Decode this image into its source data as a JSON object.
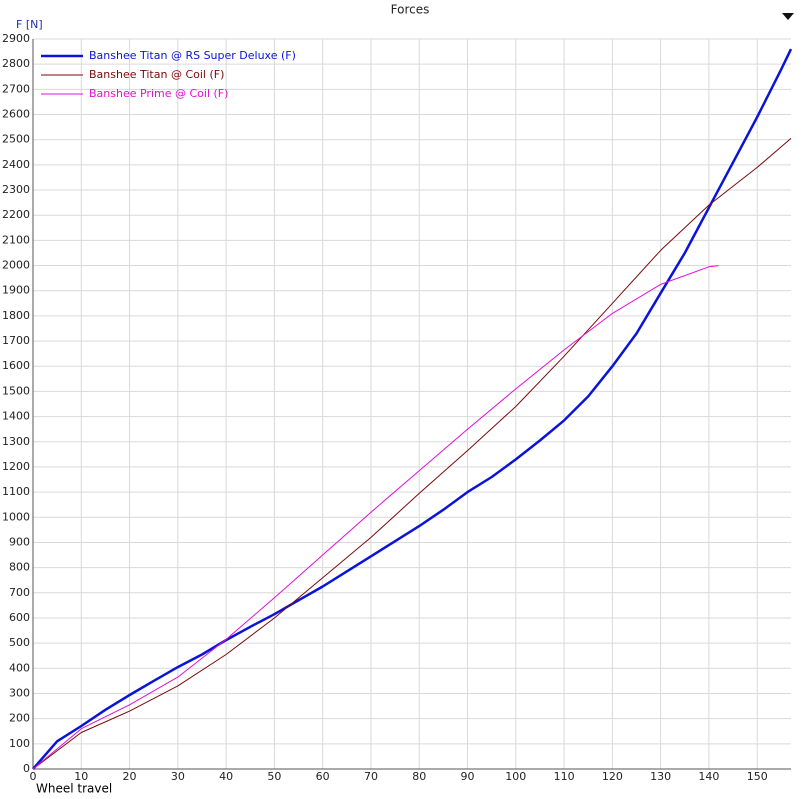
{
  "chart_data": {
    "type": "line",
    "title": "Forces",
    "y_label": "F [N]",
    "x_label": "Wheel travel",
    "xlim": [
      0,
      157
    ],
    "ylim": [
      0,
      2900
    ],
    "xticks": [
      0,
      10,
      20,
      30,
      40,
      50,
      60,
      70,
      80,
      90,
      100,
      110,
      120,
      130,
      140,
      150
    ],
    "yticks": [
      0,
      100,
      200,
      300,
      400,
      500,
      600,
      700,
      800,
      900,
      1000,
      1100,
      1200,
      1300,
      1400,
      1500,
      1600,
      1700,
      1800,
      1900,
      2000,
      2100,
      2200,
      2300,
      2400,
      2500,
      2600,
      2700,
      2800,
      2900
    ],
    "grid": true,
    "legend": "upper left",
    "series": [
      {
        "name": "Banshee Titan @ RS Super Deluxe (F)",
        "color": "#0a14d8",
        "width": 2.5,
        "x": [
          0,
          5,
          10,
          15,
          20,
          25,
          30,
          35,
          40,
          45,
          50,
          55,
          60,
          65,
          70,
          75,
          80,
          85,
          90,
          95,
          100,
          105,
          110,
          115,
          120,
          125,
          130,
          135,
          140,
          145,
          150,
          155,
          157
        ],
        "values": [
          0,
          110,
          171,
          235,
          294,
          350,
          405,
          455,
          512,
          565,
          615,
          670,
          725,
          785,
          845,
          905,
          965,
          1030,
          1100,
          1160,
          1230,
          1305,
          1385,
          1480,
          1600,
          1730,
          1890,
          2050,
          2230,
          2410,
          2590,
          2780,
          2860
        ]
      },
      {
        "name": "Banshee Titan @ Coil (F)",
        "color": "#7a0a0a",
        "width": 1,
        "x": [
          0,
          10,
          20,
          30,
          40,
          50,
          60,
          70,
          80,
          90,
          100,
          110,
          120,
          130,
          140,
          150,
          157
        ],
        "values": [
          0,
          145,
          230,
          330,
          455,
          600,
          760,
          920,
          1095,
          1265,
          1440,
          1640,
          1850,
          2060,
          2240,
          2390,
          2505
        ]
      },
      {
        "name": "Banshee Prime @ Coil (F)",
        "color": "#e010d8",
        "width": 1,
        "x": [
          0,
          10,
          20,
          30,
          40,
          50,
          60,
          70,
          80,
          90,
          100,
          110,
          120,
          130,
          140,
          142
        ],
        "values": [
          0,
          160,
          255,
          365,
          515,
          680,
          850,
          1020,
          1185,
          1350,
          1510,
          1665,
          1810,
          1925,
          1995,
          2000
        ]
      }
    ]
  }
}
